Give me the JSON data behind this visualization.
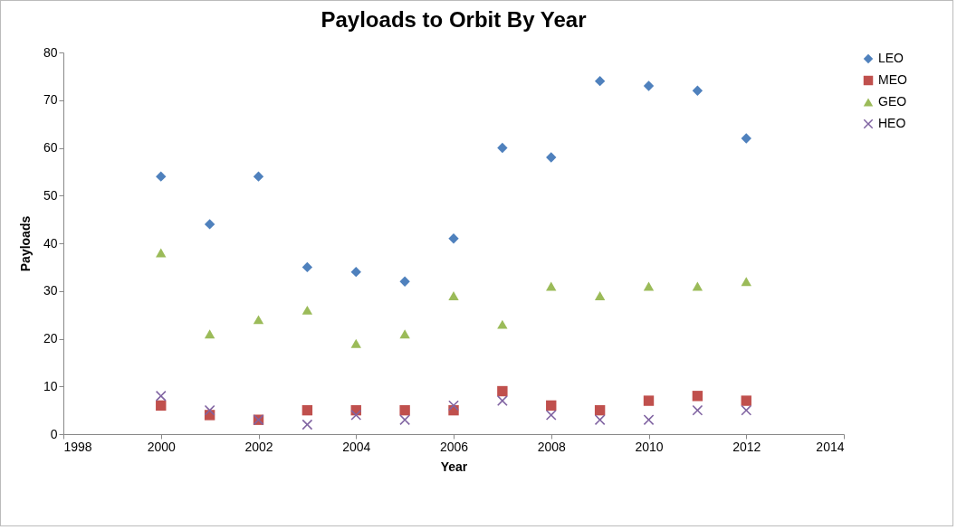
{
  "chart_data": {
    "type": "scatter",
    "title": "Payloads to Orbit By Year",
    "xlabel": "Year",
    "ylabel": "Payloads",
    "x": [
      2000,
      2001,
      2002,
      2003,
      2004,
      2005,
      2006,
      2007,
      2008,
      2009,
      2010,
      2011,
      2012
    ],
    "series": [
      {
        "name": "LEO",
        "color": "#4f81bd",
        "marker": "diamond",
        "values": [
          54,
          44,
          54,
          35,
          34,
          32,
          41,
          60,
          58,
          74,
          73,
          72,
          62
        ]
      },
      {
        "name": "MEO",
        "color": "#c0504d",
        "marker": "square",
        "values": [
          6,
          4,
          3,
          5,
          5,
          5,
          5,
          9,
          6,
          5,
          7,
          8,
          7
        ]
      },
      {
        "name": "GEO",
        "color": "#9bbb59",
        "marker": "triangle",
        "values": [
          38,
          21,
          24,
          26,
          19,
          21,
          29,
          23,
          31,
          29,
          31,
          31,
          32
        ]
      },
      {
        "name": "HEO",
        "color": "#8064a2",
        "marker": "cross",
        "values": [
          8,
          5,
          3,
          2,
          4,
          3,
          6,
          7,
          4,
          3,
          3,
          5,
          5
        ]
      }
    ],
    "xlim": [
      1998,
      2014
    ],
    "xticks": [
      1998,
      2000,
      2002,
      2004,
      2006,
      2008,
      2010,
      2012,
      2014
    ],
    "ylim": [
      0,
      80
    ],
    "yticks": [
      0,
      10,
      20,
      30,
      40,
      50,
      60,
      70,
      80
    ],
    "grid": false,
    "legend": "right"
  }
}
